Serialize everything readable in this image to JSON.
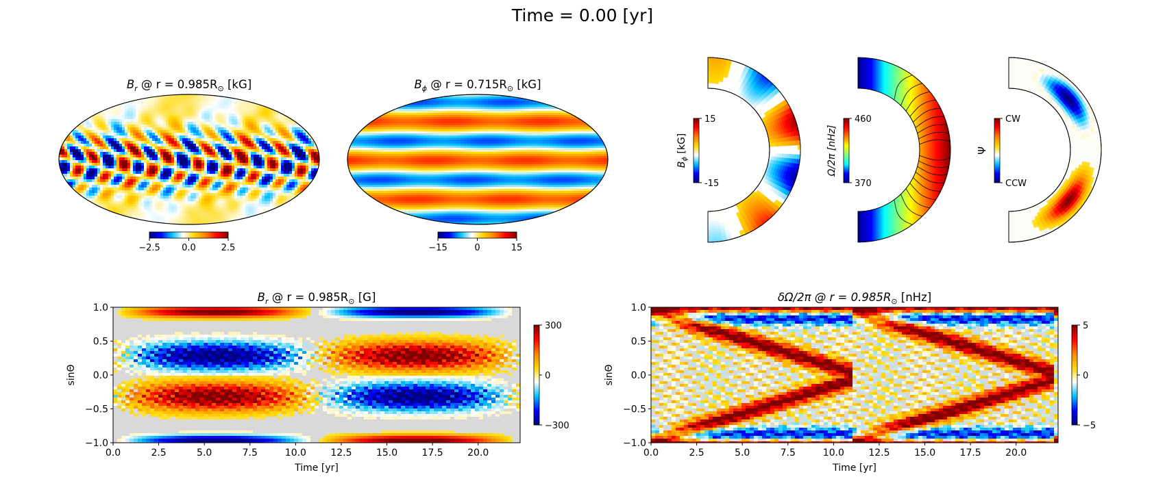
{
  "figure": {
    "suptitle": "Time = 0.00  [yr]",
    "colormap_stops": [
      "#00007f",
      "#0000ff",
      "#00bfff",
      "#ffffff",
      "#ffd700",
      "#ff7f00",
      "#ff0000",
      "#7f0000"
    ],
    "rainbow_stops": [
      "#00008f",
      "#0000ff",
      "#00ffff",
      "#7fff7f",
      "#ffff00",
      "#ff7f00",
      "#ff0000",
      "#7f0000"
    ]
  },
  "chart_data": [
    {
      "id": "br_surface_map",
      "type": "heatmap",
      "projection": "mollweide",
      "title_main": "B",
      "title_sub": "r",
      "title_rest": " @ r = 0.985R",
      "title_sun": "⊙",
      "title_unit": " [kG]",
      "colorbar": {
        "orientation": "horizontal",
        "range": [
          -2.5,
          2.5
        ],
        "ticks": [
          "−2.5",
          "0.0",
          "2.5"
        ]
      }
    },
    {
      "id": "bphi_interior_map",
      "type": "heatmap",
      "projection": "mollweide",
      "title_main": "B",
      "title_sub": "ϕ",
      "title_rest": " @ r = 0.715R",
      "title_sun": "⊙",
      "title_unit": " [kG]",
      "colorbar": {
        "orientation": "horizontal",
        "range": [
          -15,
          15
        ],
        "ticks": [
          "−15",
          "0",
          "15"
        ]
      }
    },
    {
      "id": "bphi_meridional",
      "type": "heatmap",
      "projection": "meridional-half-shell",
      "colorbar": {
        "orientation": "vertical",
        "label": "B",
        "label_sub": "ϕ",
        "label_unit": "  [kG]",
        "range": [
          -15,
          15
        ],
        "ticks": [
          "15",
          "-15"
        ]
      }
    },
    {
      "id": "omega_meridional",
      "type": "heatmap",
      "projection": "meridional-half-shell",
      "colorbar": {
        "orientation": "vertical",
        "label": "Ω/2π  [nHz]",
        "range": [
          370,
          460
        ],
        "ticks": [
          "460",
          "370"
        ]
      }
    },
    {
      "id": "psi_meridional",
      "type": "heatmap",
      "projection": "meridional-half-shell",
      "colorbar": {
        "orientation": "vertical",
        "label": "Ψ",
        "ticks": [
          "CW",
          "CCW"
        ]
      }
    },
    {
      "id": "br_butterfly",
      "type": "heatmap",
      "title_main": "B",
      "title_sub": "r",
      "title_rest": " @ r = 0.985R",
      "title_sun": "⊙",
      "title_unit": " [G]",
      "xlabel": "Time [yr]",
      "ylabel": "sinΘ",
      "xlim": [
        0,
        22.3
      ],
      "ylim": [
        -1.0,
        1.0
      ],
      "xticks": [
        0.0,
        2.5,
        5.0,
        7.5,
        10.0,
        12.5,
        15.0,
        17.5,
        20.0
      ],
      "xtick_labels": [
        "0.0",
        "2.5",
        "5.0",
        "7.5",
        "10.0",
        "12.5",
        "15.0",
        "17.5",
        "20.0"
      ],
      "yticks": [
        1.0,
        0.5,
        0.0,
        -0.5,
        -1.0
      ],
      "ytick_labels": [
        "1.0",
        "0.5",
        "0.0",
        "−0.5",
        "−1.0"
      ],
      "colorbar": {
        "range": [
          -300,
          300
        ],
        "ticks": [
          "300",
          "0",
          "−300"
        ]
      }
    },
    {
      "id": "domega_butterfly",
      "type": "heatmap",
      "title_main": "δΩ/2π @ r = 0.985R",
      "title_sun": "⊙",
      "title_unit": " [nHz]",
      "xlabel": "Time [yr]",
      "ylabel": "sinΘ",
      "xlim": [
        0,
        22.3
      ],
      "ylim": [
        -1.0,
        1.0
      ],
      "xticks": [
        0.0,
        2.5,
        5.0,
        7.5,
        10.0,
        12.5,
        15.0,
        17.5,
        20.0
      ],
      "xtick_labels": [
        "0.0",
        "2.5",
        "5.0",
        "7.5",
        "10.0",
        "12.5",
        "15.0",
        "17.5",
        "20.0"
      ],
      "yticks": [
        1.0,
        0.5,
        0.0,
        -0.5,
        -1.0
      ],
      "ytick_labels": [
        "1.0",
        "0.5",
        "0.0",
        "−0.5",
        "−1.0"
      ],
      "colorbar": {
        "range": [
          -5,
          5
        ],
        "ticks": [
          "5",
          "0",
          "−5"
        ]
      }
    }
  ]
}
